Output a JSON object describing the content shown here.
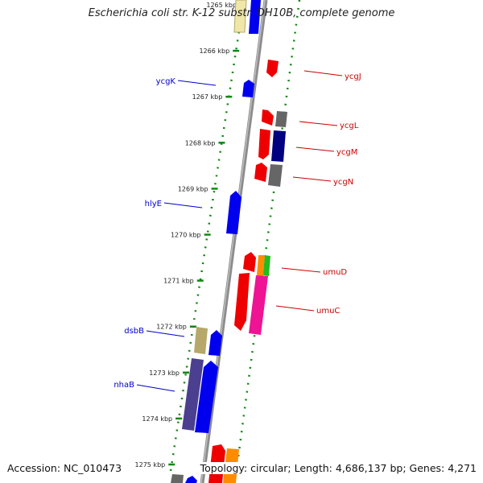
{
  "title": "Escherichia coli str. K-12 substr. DH10B, complete genome",
  "footer": {
    "accession": "Accession: NC_010473",
    "summary": "Topology: circular; Length: 4,686,137 bp; Genes: 4,271"
  },
  "ticks": [
    "1265 kbp",
    "1266 kbp",
    "1267 kbp",
    "1268 kbp",
    "1269 kbp",
    "1270 kbp",
    "1271 kbp",
    "1272 kbp",
    "1273 kbp",
    "1274 kbp",
    "1275 kbp"
  ],
  "labels": {
    "forward": [
      "ycgK",
      "hlyE",
      "dsbB",
      "nhaB"
    ],
    "reverse": [
      "ycgJ",
      "ycgL",
      "ycgM",
      "ycgN",
      "umuD",
      "umuC"
    ]
  },
  "colors": {
    "forward_label": "#0000cc",
    "reverse_label": "#cc0000",
    "blue": "#0000ee",
    "red": "#ee0000",
    "gray": "#666666",
    "navy": "#000080",
    "purple": "#4b3f8f",
    "khaki": "#b5a86a",
    "pink": "#ee1493",
    "orange": "#ff8c00",
    "green": "#22bb22",
    "backbone": "#8c8c8c",
    "dots": "#118811"
  }
}
